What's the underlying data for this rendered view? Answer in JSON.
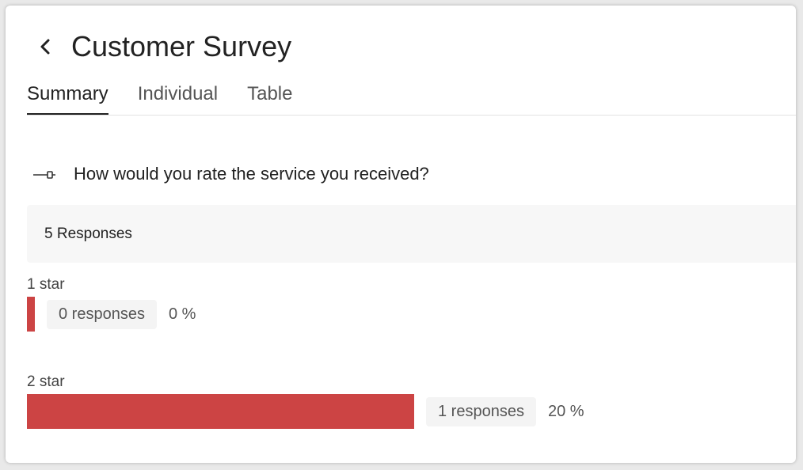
{
  "header": {
    "title": "Customer Survey",
    "back_icon": "chevron-left-icon"
  },
  "tabs": [
    {
      "label": "Summary",
      "active": true
    },
    {
      "label": "Individual",
      "active": false
    },
    {
      "label": "Table",
      "active": false
    }
  ],
  "question": {
    "icon": "slider-icon",
    "text": "How would you rate the service you received?"
  },
  "summary": {
    "responses_label": "5 Responses"
  },
  "options": [
    {
      "label": "1 star",
      "responses_label": "0 responses",
      "percent_label": "0 %",
      "fraction": 0.0
    },
    {
      "label": "2 star",
      "responses_label": "1 responses",
      "percent_label": "20 %",
      "fraction": 0.2
    }
  ],
  "colors": {
    "bar": "#cc4444",
    "active_tab": "#222222"
  }
}
